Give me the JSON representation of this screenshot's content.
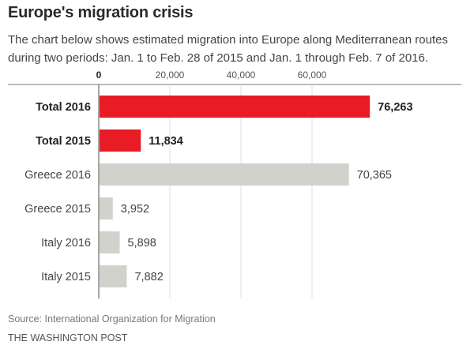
{
  "header": {
    "title": "Europe's migration crisis",
    "subtitle": "The chart below shows estimated migration into Europe along Mediterranean routes during two periods: Jan. 1 to Feb. 28 of 2015 and Jan. 1 through Feb. 7 of 2016."
  },
  "footer": {
    "source": "Source: International Organization for Migration",
    "credit": "THE WASHINGTON POST"
  },
  "colors": {
    "highlight": "#e81c24",
    "neutral": "#d2d2cd",
    "grid": "#dddddd",
    "axis": "#888888"
  },
  "chart_data": {
    "type": "bar",
    "orientation": "horizontal",
    "title": "Europe's migration crisis",
    "xlabel": "",
    "ylabel": "",
    "xlim": [
      0,
      100000
    ],
    "x_ticks": [
      0,
      20000,
      40000,
      60000
    ],
    "x_tick_labels": [
      "0",
      "20,000",
      "40,000",
      "60,000"
    ],
    "grid": true,
    "tick_position": "top",
    "categories": [
      "Total 2016",
      "Total 2015",
      "Greece 2016",
      "Greece 2015",
      "Italy 2016",
      "Italy 2015"
    ],
    "values": [
      76263,
      11834,
      70365,
      3952,
      5898,
      7882
    ],
    "value_labels": [
      "76,263",
      "11,834",
      "70,365",
      "3,952",
      "5,898",
      "7,882"
    ],
    "highlight": [
      true,
      true,
      false,
      false,
      false,
      false
    ]
  }
}
